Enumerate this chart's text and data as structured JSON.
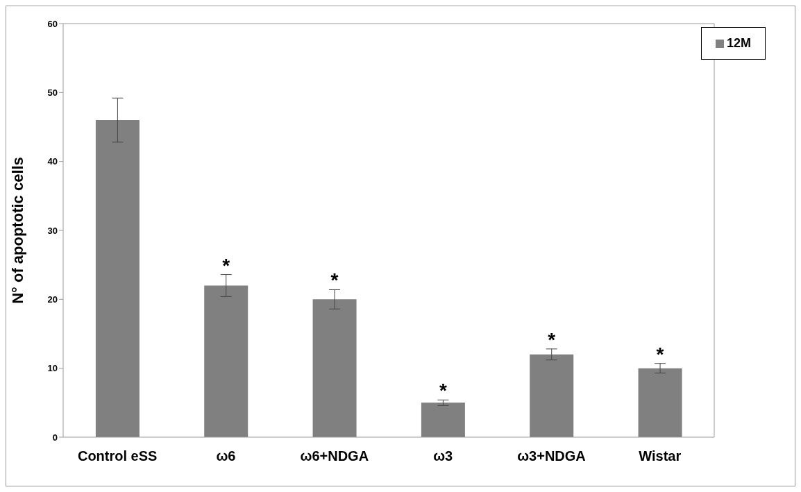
{
  "chart_data": {
    "type": "bar",
    "ylabel": "N° of apoptotic  cells",
    "categories": [
      "Control eSS",
      "ω6",
      "ω6+NDGA",
      "ω3",
      "ω3+NDGA",
      "Wistar"
    ],
    "series": [
      {
        "name": "12M",
        "color": "#808080",
        "values": [
          46,
          22,
          20,
          5,
          12,
          10
        ],
        "errors": [
          3.2,
          1.6,
          1.4,
          0.4,
          0.8,
          0.7
        ],
        "value_labels": [
          null,
          "*",
          "*",
          "*",
          "*",
          "*"
        ]
      }
    ],
    "ylim": [
      0,
      60
    ],
    "yticks": [
      0,
      10,
      20,
      30,
      40,
      50,
      60
    ],
    "grid": false,
    "legend": "top right"
  }
}
